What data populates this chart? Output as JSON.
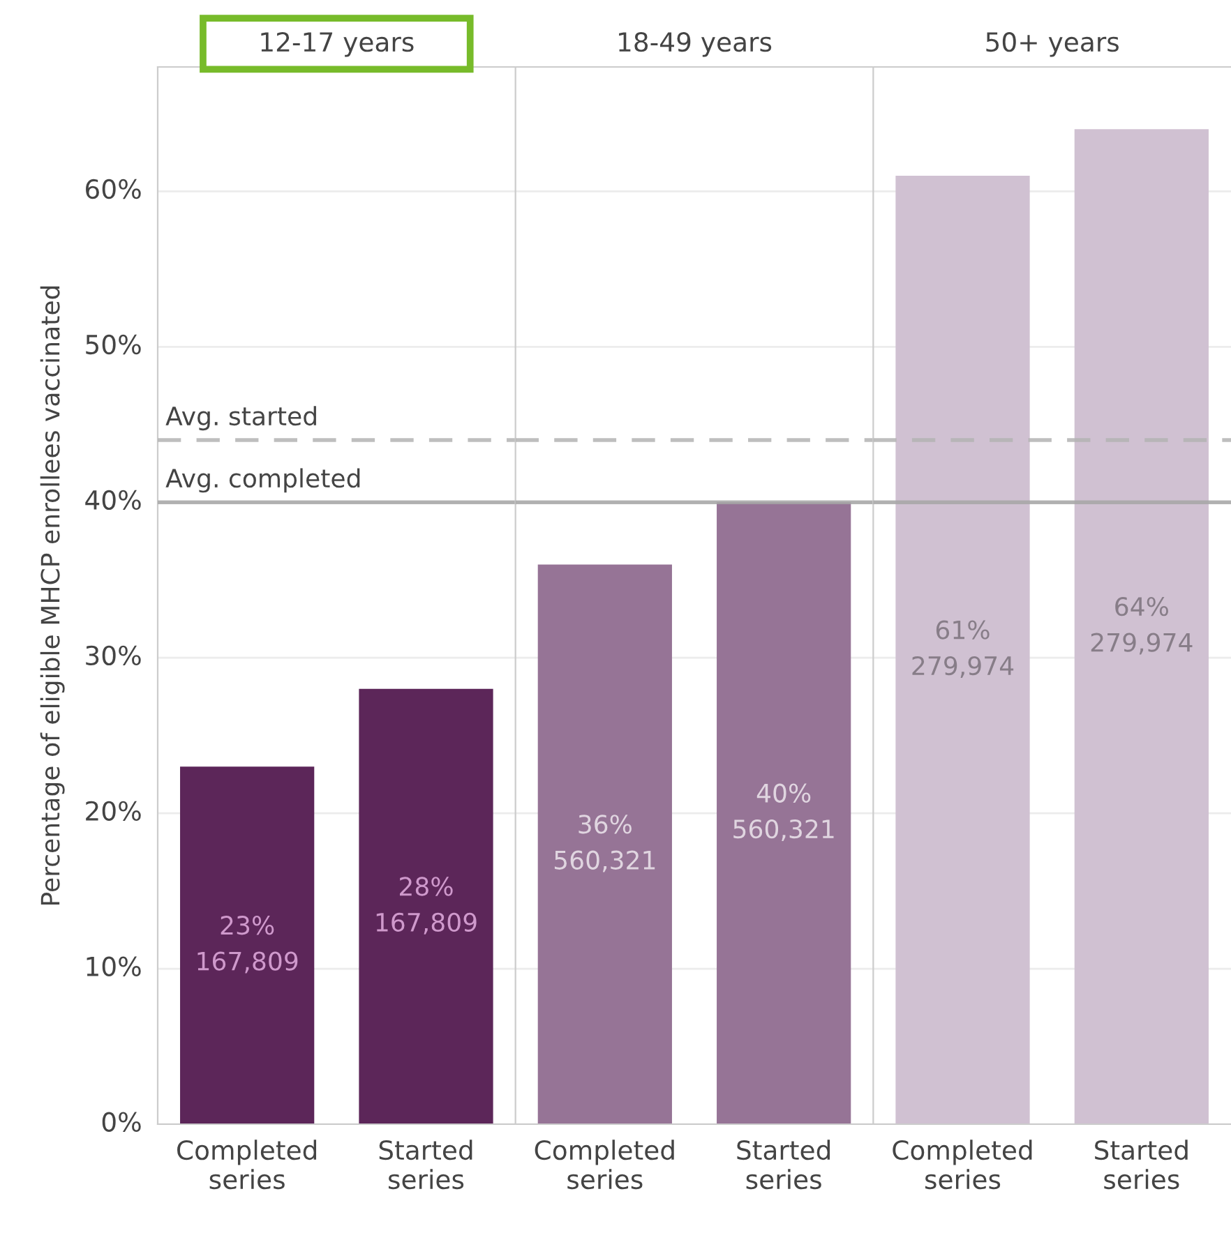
{
  "chart_data": [
    {
      "type": "bar",
      "title": "12-17 years",
      "ylabel": "Percentage of eligible MHCP enrollees vaccinated",
      "categories": [
        "Completed\nseries",
        "Started\nseries"
      ],
      "values": [
        23,
        28
      ],
      "color": "#5c2659",
      "value_labels": [
        "23%\n167,809",
        "28%\n167,809"
      ],
      "ylim": [
        0,
        68
      ],
      "yticks": [
        {
          "value": 0,
          "label": "0%"
        },
        {
          "value": 10,
          "label": "10%"
        },
        {
          "value": 20,
          "label": "20%"
        },
        {
          "value": 30,
          "label": "30%"
        },
        {
          "value": 40,
          "label": "40%"
        },
        {
          "value": 50,
          "label": "50%"
        },
        {
          "value": 60,
          "label": "60%"
        }
      ],
      "grid": "y",
      "ref_lines": [
        {
          "axis": "y",
          "value": 44,
          "label": "Avg. started",
          "color": "#b3b3b3",
          "line_style": "dashed"
        },
        {
          "axis": "y",
          "value": 40,
          "label": "Avg. completed",
          "color": "#a6a6a6",
          "line_style": "solid"
        }
      ]
    },
    {
      "type": "bar",
      "title": "18-49 years",
      "categories": [
        "Completed\nseries",
        "Started\nseries"
      ],
      "values": [
        36,
        40
      ],
      "color": "#967496",
      "value_labels": [
        "36%\n560,321",
        "40%\n560,321"
      ],
      "ylim": [
        0,
        68
      ],
      "yticks": [
        {
          "value": 0,
          "label": null
        },
        {
          "value": 10,
          "label": null
        },
        {
          "value": 20,
          "label": null
        },
        {
          "value": 30,
          "label": null
        },
        {
          "value": 40,
          "label": null
        },
        {
          "value": 50,
          "label": null
        },
        {
          "value": 60,
          "label": null
        }
      ],
      "grid": "y",
      "tick_labels": "x",
      "ref_lines": [
        {
          "axis": "y",
          "value": 44,
          "color": "#b3b3b3",
          "line_style": "dashed"
        },
        {
          "axis": "y",
          "value": 40,
          "color": "#a6a6a6",
          "line_style": "solid"
        }
      ]
    },
    {
      "type": "bar",
      "title": "50+ years",
      "categories": [
        "Completed\nseries",
        "Started\nseries"
      ],
      "values": [
        61,
        64
      ],
      "color": "#d0c1d2",
      "value_labels": [
        "61%\n279,974",
        "64%\n279,974"
      ],
      "ylim": [
        0,
        68
      ],
      "yticks": [
        {
          "value": 0,
          "label": null
        },
        {
          "value": 10,
          "label": null
        },
        {
          "value": 20,
          "label": null
        },
        {
          "value": 30,
          "label": null
        },
        {
          "value": 40,
          "label": null
        },
        {
          "value": 50,
          "label": null
        },
        {
          "value": 60,
          "label": null
        }
      ],
      "grid": "y",
      "tick_labels": "x",
      "ref_lines": [
        {
          "axis": "y",
          "value": 44,
          "color": "#b3b3b3",
          "line_style": "dashed"
        },
        {
          "axis": "y",
          "value": 40,
          "color": "#a6a6a6",
          "line_style": "solid"
        }
      ]
    }
  ]
}
